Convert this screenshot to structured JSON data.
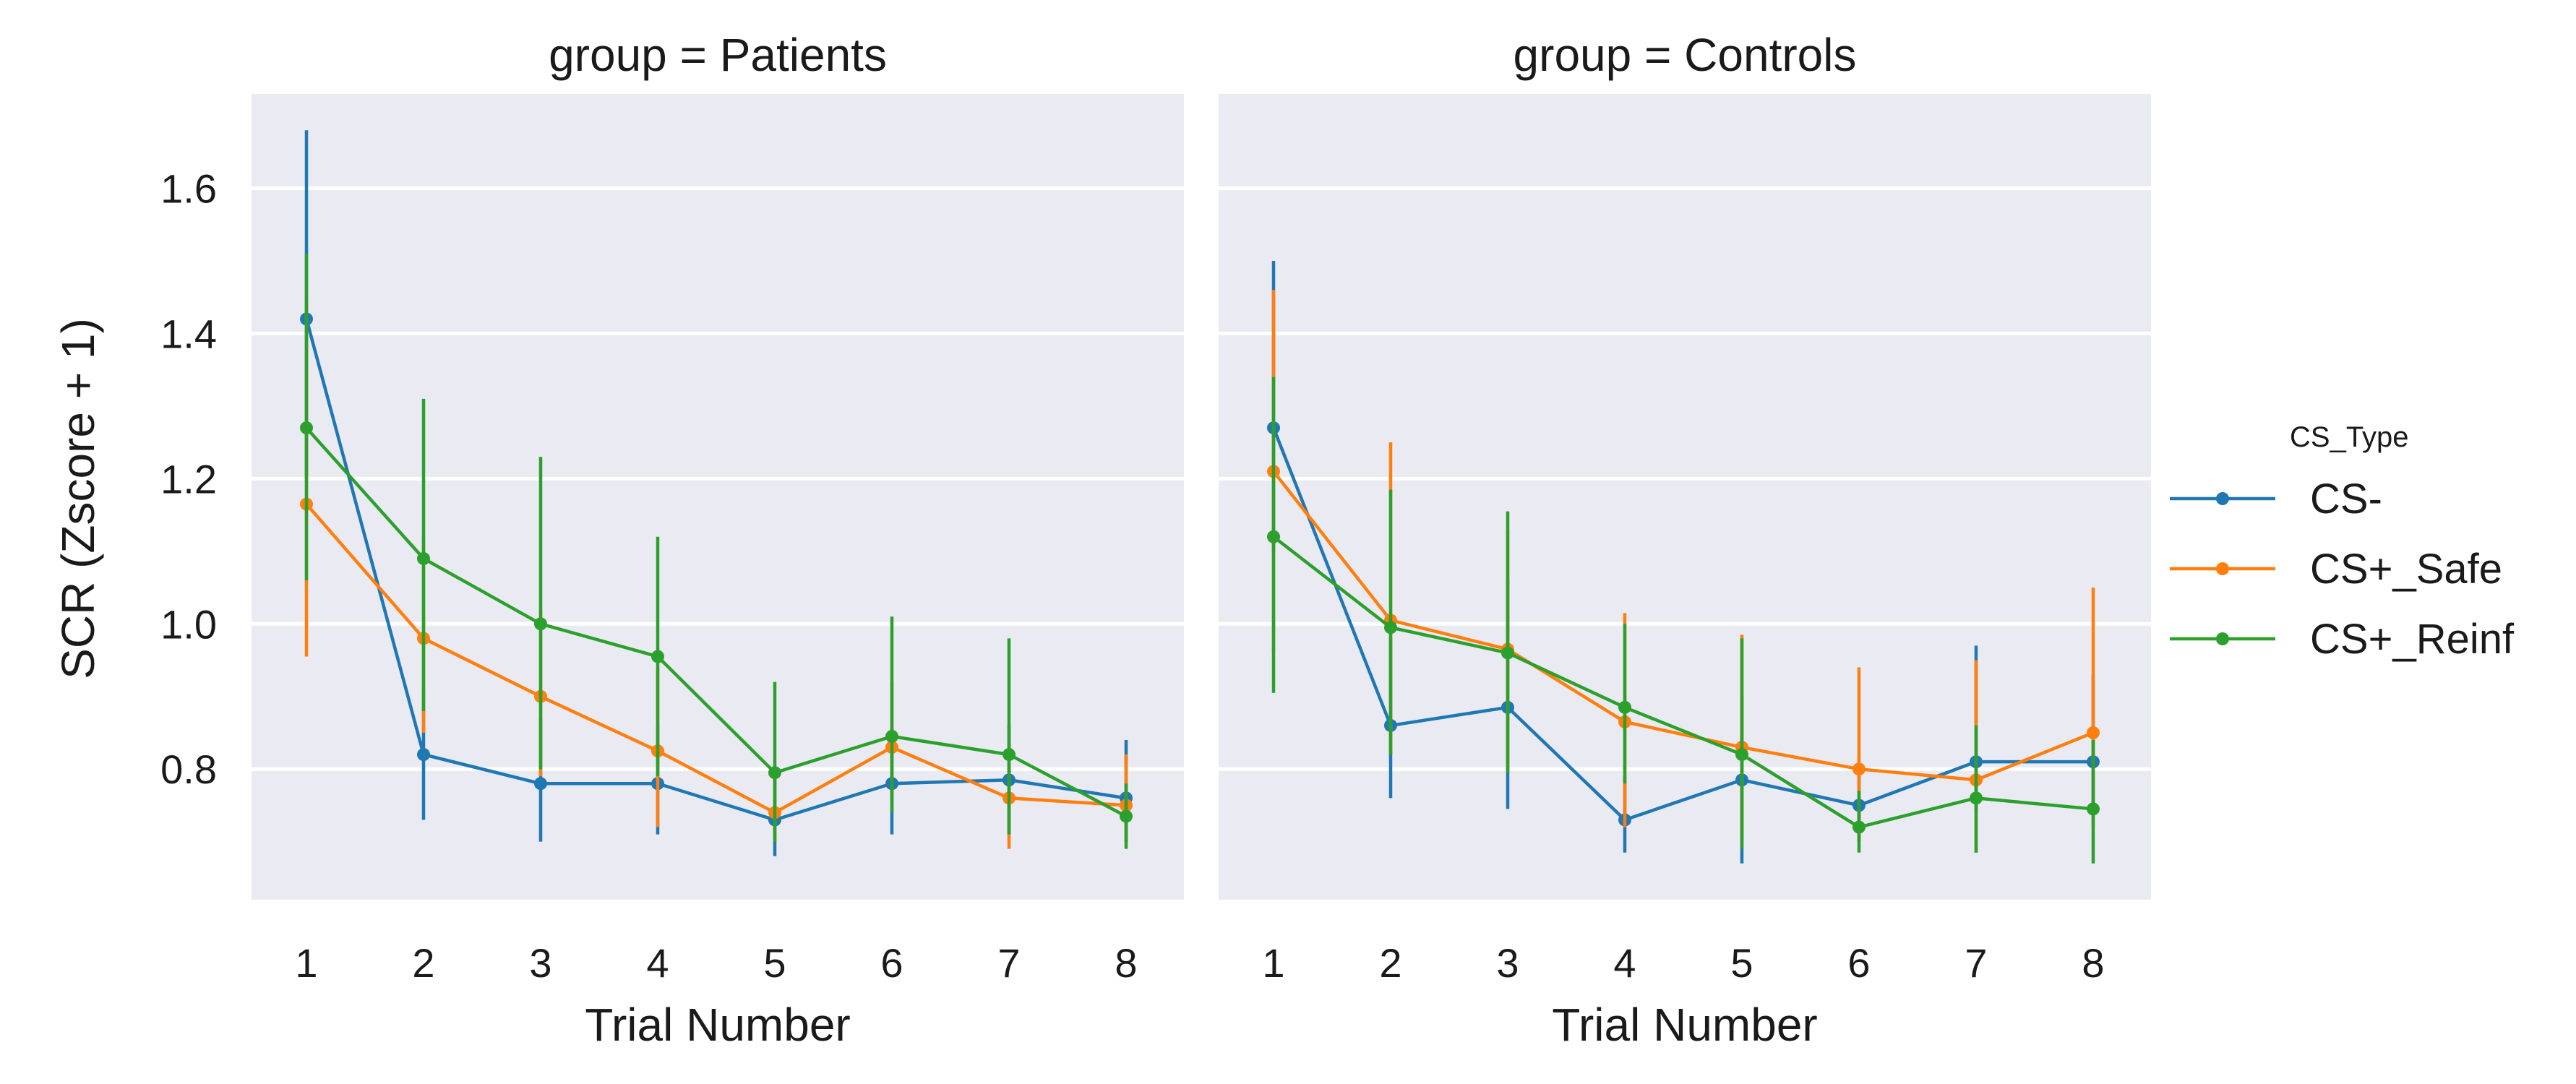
{
  "chart_data": {
    "type": "line",
    "title": "",
    "ylabel": "SCR (Zscore + 1)",
    "xlabel": "Trial Number",
    "ylim": [
      0.62,
      1.73
    ],
    "yticks": [
      0.8,
      1.0,
      1.2,
      1.4,
      1.6
    ],
    "ytick_labels": [
      "0.8",
      "1.0",
      "1.2",
      "1.4",
      "1.6"
    ],
    "x": [
      1,
      2,
      3,
      4,
      5,
      6,
      7,
      8
    ],
    "xtick_labels": [
      "1",
      "2",
      "3",
      "4",
      "5",
      "6",
      "7",
      "8"
    ],
    "grid": true,
    "legend": {
      "title": "CS_Type",
      "position": "right",
      "entries": [
        "CS-",
        "CS+_Safe",
        "CS+_Reinf"
      ]
    },
    "panels": [
      {
        "title": "group = Patients",
        "series": [
          {
            "name": "CS-",
            "color": "#1f77b4",
            "values": [
              1.42,
              0.82,
              0.78,
              0.78,
              0.73,
              0.78,
              0.785,
              0.76
            ],
            "ci_low": [
              1.2,
              0.73,
              0.7,
              0.71,
              0.68,
              0.71,
              0.71,
              0.7
            ],
            "ci_high": [
              1.68,
              0.91,
              0.87,
              0.86,
              0.79,
              0.85,
              0.86,
              0.84
            ]
          },
          {
            "name": "CS+_Safe",
            "color": "#ff7f0e",
            "values": [
              1.165,
              0.98,
              0.9,
              0.825,
              0.74,
              0.83,
              0.76,
              0.75
            ],
            "ci_low": [
              0.955,
              0.85,
              0.79,
              0.72,
              0.7,
              0.75,
              0.69,
              0.7
            ],
            "ci_high": [
              1.45,
              1.12,
              1.02,
              0.94,
              0.8,
              0.92,
              0.84,
              0.82
            ]
          },
          {
            "name": "CS+_Reinf",
            "color": "#2ca02c",
            "values": [
              1.27,
              1.09,
              1.0,
              0.955,
              0.795,
              0.845,
              0.82,
              0.735
            ],
            "ci_low": [
              1.06,
              0.88,
              0.8,
              0.79,
              0.7,
              0.74,
              0.71,
              0.69
            ],
            "ci_high": [
              1.51,
              1.31,
              1.23,
              1.12,
              0.92,
              1.01,
              0.98,
              0.78
            ]
          }
        ]
      },
      {
        "title": "group = Controls",
        "series": [
          {
            "name": "CS-",
            "color": "#1f77b4",
            "values": [
              1.27,
              0.86,
              0.885,
              0.73,
              0.785,
              0.75,
              0.81,
              0.81
            ],
            "ci_low": [
              1.1,
              0.76,
              0.745,
              0.685,
              0.67,
              0.7,
              0.74,
              0.74
            ],
            "ci_high": [
              1.5,
              0.98,
              1.06,
              0.79,
              0.9,
              0.8,
              0.97,
              0.93
            ]
          },
          {
            "name": "CS+_Safe",
            "color": "#ff7f0e",
            "values": [
              1.21,
              1.005,
              0.965,
              0.865,
              0.83,
              0.8,
              0.785,
              0.85
            ],
            "ci_low": [
              0.96,
              0.82,
              0.8,
              0.72,
              0.7,
              0.7,
              0.685,
              0.72
            ],
            "ci_high": [
              1.46,
              1.25,
              1.13,
              1.015,
              0.985,
              0.94,
              0.95,
              1.05
            ]
          },
          {
            "name": "CS+_Reinf",
            "color": "#2ca02c",
            "values": [
              1.12,
              0.995,
              0.96,
              0.885,
              0.82,
              0.72,
              0.76,
              0.745
            ],
            "ci_low": [
              0.905,
              0.82,
              0.795,
              0.78,
              0.69,
              0.685,
              0.685,
              0.67
            ],
            "ci_high": [
              1.34,
              1.185,
              1.155,
              1.0,
              0.98,
              0.77,
              0.86,
              0.84
            ]
          }
        ]
      }
    ]
  }
}
